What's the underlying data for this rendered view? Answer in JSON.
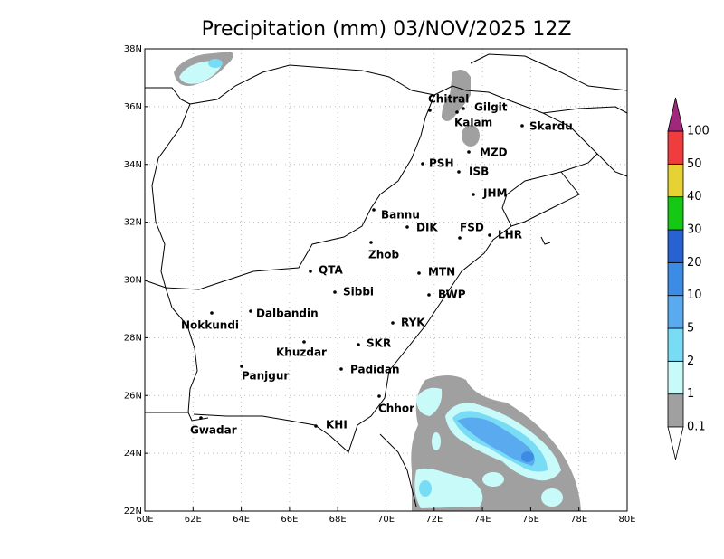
{
  "map": {
    "title": "Precipitation (mm) 03/NOV/2025 12Z",
    "lon_ticks": [
      "60E",
      "62E",
      "64E",
      "66E",
      "68E",
      "70E",
      "72E",
      "74E",
      "76E",
      "78E",
      "80E"
    ],
    "lat_ticks": [
      "22N",
      "24N",
      "26N",
      "28N",
      "30N",
      "32N",
      "34N",
      "36N",
      "38N"
    ],
    "cities": [
      "Chitral",
      "Gilgit",
      "Kalam",
      "Skardu",
      "MZD",
      "PSH",
      "ISB",
      "JHM",
      "Bannu",
      "DIK",
      "FSD",
      "LHR",
      "Zhob",
      "QTA",
      "MTN",
      "Sibbi",
      "BWP",
      "Nokkundi",
      "Dalbandin",
      "RYK",
      "Khuzdar",
      "SKR",
      "Padidan",
      "Panjgur",
      "Chhor",
      "KHI",
      "Gwadar"
    ],
    "colorbar": {
      "levels": [
        0.1,
        1,
        2,
        5,
        10,
        20,
        30,
        40,
        50,
        100
      ],
      "colors": [
        "#a0a0a0",
        "#c8fafa",
        "#78dcf5",
        "#5aaaf0",
        "#3c8ce6",
        "#2862d2",
        "#14c814",
        "#e6d232",
        "#f03c3c"
      ],
      "over_color": "#a0287a",
      "under_color": "#ffffff"
    }
  }
}
